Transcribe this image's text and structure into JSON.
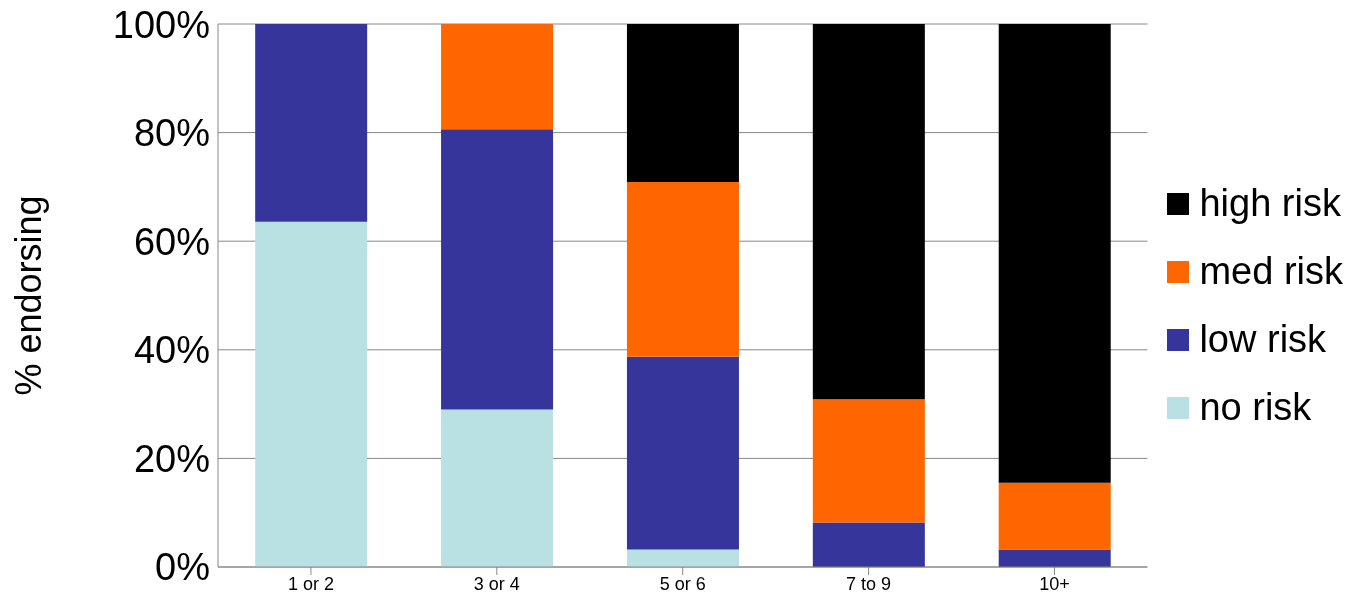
{
  "chart_data": {
    "type": "bar",
    "stacked": true,
    "ylabel": "% endorsing",
    "categories": [
      "1 or 2",
      "3 or 4",
      "5 or 6",
      "7 to 9",
      "10+"
    ],
    "series": [
      {
        "name": "no risk",
        "color": "#b9e0e2",
        "values": [
          63.6,
          29,
          3.2,
          0,
          0
        ]
      },
      {
        "name": "low risk",
        "color": "#35359b",
        "values": [
          36.4,
          51.6,
          35.5,
          8.2,
          3.2
        ]
      },
      {
        "name": "med risk",
        "color": "#ff6600",
        "values": [
          0,
          19.4,
          32.2,
          22.7,
          12.3
        ]
      },
      {
        "name": "high risk",
        "color": "#000000",
        "values": [
          0,
          0,
          29.1,
          69.1,
          84.5
        ]
      }
    ],
    "ylim": [
      0,
      100
    ],
    "yticks": [
      {
        "value": 0,
        "label": "0%"
      },
      {
        "value": 20,
        "label": "20%"
      },
      {
        "value": 40,
        "label": "40%"
      },
      {
        "value": 60,
        "label": "60%"
      },
      {
        "value": 80,
        "label": "80%"
      },
      {
        "value": 100,
        "label": "100%"
      }
    ],
    "grid": "y",
    "legend": "right"
  }
}
